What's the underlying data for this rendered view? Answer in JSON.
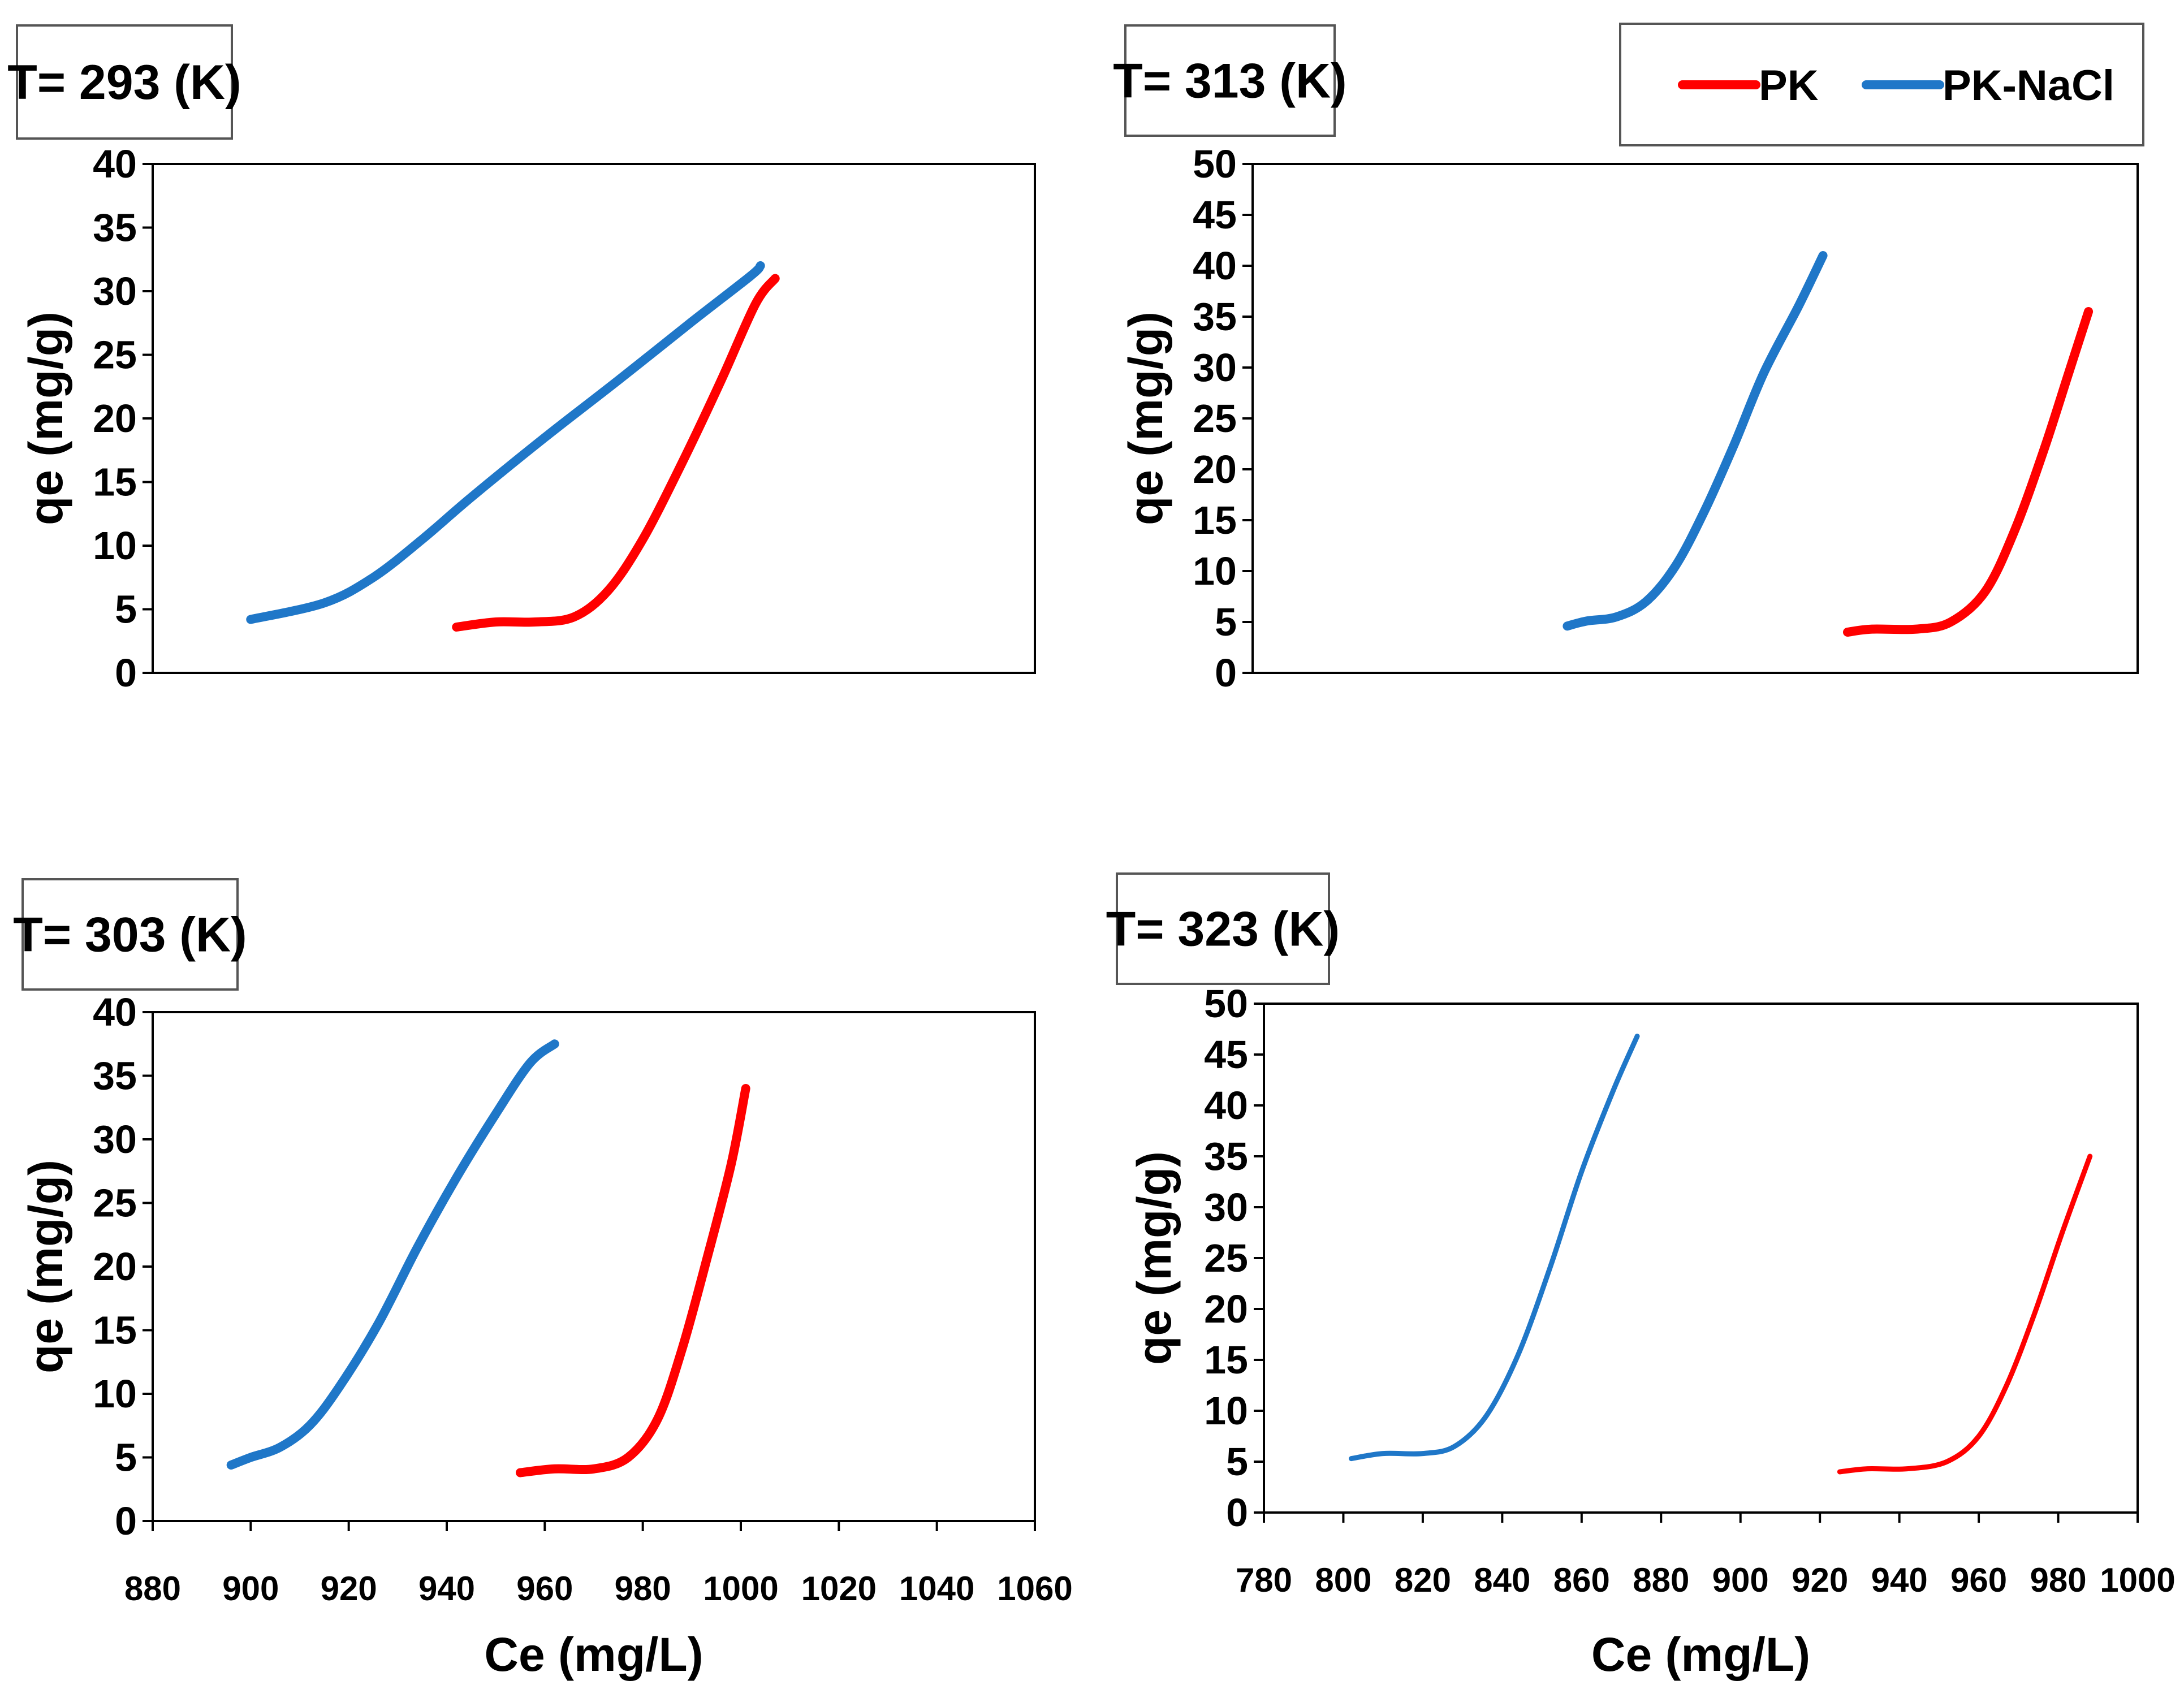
{
  "legend": {
    "items": [
      {
        "label": "PK",
        "color": "#ff0000"
      },
      {
        "label": "PK-NaCl",
        "color": "#1f77c8"
      }
    ]
  },
  "chart_data": [
    {
      "type": "line",
      "id": "t293",
      "title": "T= 293 (K)",
      "ylabel": "qe (mg/g)",
      "xlabel": "",
      "xlim": [
        880,
        1060
      ],
      "ylim": [
        0,
        40
      ],
      "yticks": [
        "0",
        "5",
        "10",
        "15",
        "20",
        "25",
        "30",
        "35",
        "40"
      ],
      "xticks": [],
      "series": [
        {
          "name": "PK-NaCl",
          "color": "#1f77c8",
          "points": [
            [
              900,
              4.2
            ],
            [
              915,
              5.5
            ],
            [
              925,
              7.5
            ],
            [
              935,
              10.5
            ],
            [
              945,
              13.8
            ],
            [
              960,
              18.5
            ],
            [
              975,
              23.0
            ],
            [
              990,
              27.6
            ],
            [
              1002,
              31.2
            ],
            [
              1004,
              32.0
            ]
          ]
        },
        {
          "name": "PK",
          "color": "#ff0000",
          "points": [
            [
              942,
              3.6
            ],
            [
              950,
              4.0
            ],
            [
              958,
              4.0
            ],
            [
              966,
              4.4
            ],
            [
              973,
              6.5
            ],
            [
              980,
              10.5
            ],
            [
              988,
              16.5
            ],
            [
              996,
              23.0
            ],
            [
              1003,
              29.0
            ],
            [
              1007,
              31.0
            ]
          ]
        }
      ]
    },
    {
      "type": "line",
      "id": "t313",
      "title": "T= 313 (K)",
      "ylabel": "qe (mg/g)",
      "xlabel": "",
      "xlim": [
        800,
        980
      ],
      "ylim": [
        0,
        50
      ],
      "yticks": [
        "0",
        "5",
        "10",
        "15",
        "20",
        "25",
        "30",
        "35",
        "40",
        "45",
        "50"
      ],
      "xticks": [],
      "series": [
        {
          "name": "PK-NaCl",
          "color": "#1f77c8",
          "points": [
            [
              864,
              4.6
            ],
            [
              868,
              5.1
            ],
            [
              874,
              5.5
            ],
            [
              880,
              7.0
            ],
            [
              886,
              10.5
            ],
            [
              892,
              16.0
            ],
            [
              898,
              22.5
            ],
            [
              904,
              29.5
            ],
            [
              911,
              36.0
            ],
            [
              916,
              41.0
            ]
          ]
        },
        {
          "name": "PK",
          "color": "#ff0000",
          "points": [
            [
              921,
              4.0
            ],
            [
              926,
              4.3
            ],
            [
              935,
              4.3
            ],
            [
              942,
              5.0
            ],
            [
              949,
              8.0
            ],
            [
              955,
              14.0
            ],
            [
              961,
              22.0
            ],
            [
              966,
              29.5
            ],
            [
              970,
              35.5
            ]
          ]
        }
      ]
    },
    {
      "type": "line",
      "id": "t303",
      "title": "T= 303 (K)",
      "ylabel": "qe (mg/g)",
      "xlabel": "Ce (mg/L)",
      "xlim": [
        880,
        1060
      ],
      "ylim": [
        0,
        40
      ],
      "yticks": [
        "0",
        "5",
        "10",
        "15",
        "20",
        "25",
        "30",
        "35",
        "40"
      ],
      "xticks": [
        "880",
        "900",
        "920",
        "940",
        "960",
        "980",
        "1000",
        "1020",
        "1040",
        "1060"
      ],
      "series": [
        {
          "name": "PK-NaCl",
          "color": "#1f77c8",
          "points": [
            [
              896,
              4.4
            ],
            [
              900,
              5.0
            ],
            [
              906,
              5.8
            ],
            [
              912,
              7.5
            ],
            [
              918,
              10.5
            ],
            [
              926,
              15.5
            ],
            [
              934,
              21.5
            ],
            [
              942,
              27.0
            ],
            [
              950,
              32.0
            ],
            [
              957,
              36.0
            ],
            [
              962,
              37.5
            ]
          ]
        },
        {
          "name": "PK",
          "color": "#ff0000",
          "points": [
            [
              955,
              3.8
            ],
            [
              962,
              4.1
            ],
            [
              970,
              4.1
            ],
            [
              977,
              5.0
            ],
            [
              983,
              8.0
            ],
            [
              988,
              13.5
            ],
            [
              993,
              20.5
            ],
            [
              998,
              28.0
            ],
            [
              1001,
              34.0
            ]
          ]
        }
      ]
    },
    {
      "type": "line",
      "id": "t323",
      "title": "T= 323 (K)",
      "ylabel": "qe (mg/g)",
      "xlabel": "Ce (mg/L)",
      "xlim": [
        780,
        1000
      ],
      "ylim": [
        0,
        50
      ],
      "yticks": [
        "0",
        "5",
        "10",
        "15",
        "20",
        "25",
        "30",
        "35",
        "40",
        "45",
        "50"
      ],
      "xticks": [
        "780",
        "800",
        "820",
        "840",
        "860",
        "880",
        "900",
        "920",
        "940",
        "960",
        "980",
        "1000"
      ],
      "series": [
        {
          "name": "PK-NaCl",
          "color": "#1f77c8",
          "points": [
            [
              802,
              5.3
            ],
            [
              810,
              5.8
            ],
            [
              820,
              5.8
            ],
            [
              828,
              6.5
            ],
            [
              836,
              9.5
            ],
            [
              844,
              15.5
            ],
            [
              852,
              24.0
            ],
            [
              860,
              33.5
            ],
            [
              868,
              41.5
            ],
            [
              874,
              46.8
            ]
          ]
        },
        {
          "name": "PK",
          "color": "#ff0000",
          "points": [
            [
              925,
              4.0
            ],
            [
              932,
              4.3
            ],
            [
              942,
              4.3
            ],
            [
              952,
              5.0
            ],
            [
              960,
              7.5
            ],
            [
              967,
              12.5
            ],
            [
              974,
              19.5
            ],
            [
              981,
              27.5
            ],
            [
              988,
              35.0
            ]
          ]
        }
      ]
    }
  ]
}
